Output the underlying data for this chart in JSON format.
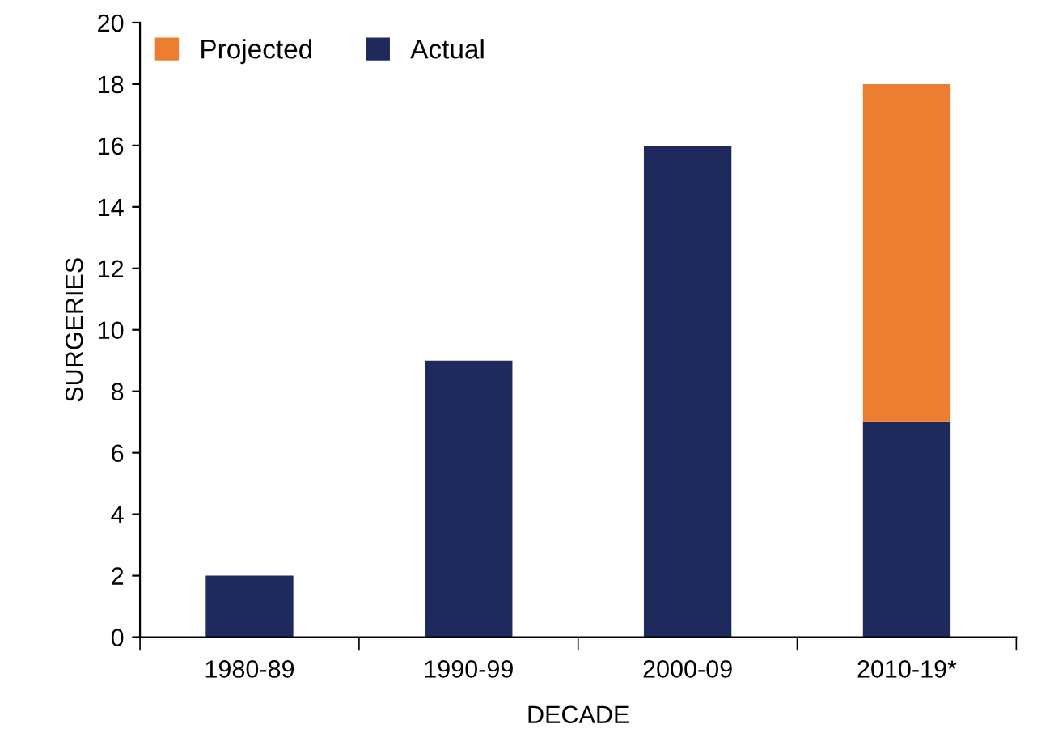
{
  "chart_data": {
    "type": "bar",
    "stacked": true,
    "xlabel": "DECADE",
    "ylabel": "SURGERIES",
    "categories": [
      "1980-89",
      "1990-99",
      "2000-09",
      "2010-19*"
    ],
    "series": [
      {
        "name": "Actual",
        "color": "#1f2a5c",
        "values": [
          2,
          9,
          16,
          7
        ]
      },
      {
        "name": "Projected",
        "color": "#ed7d31",
        "values": [
          null,
          null,
          null,
          11
        ]
      }
    ],
    "ylim": [
      0,
      20
    ],
    "yticks": [
      0,
      2,
      4,
      6,
      8,
      10,
      12,
      14,
      16,
      18,
      20
    ],
    "grid": false,
    "legend": "top left"
  }
}
